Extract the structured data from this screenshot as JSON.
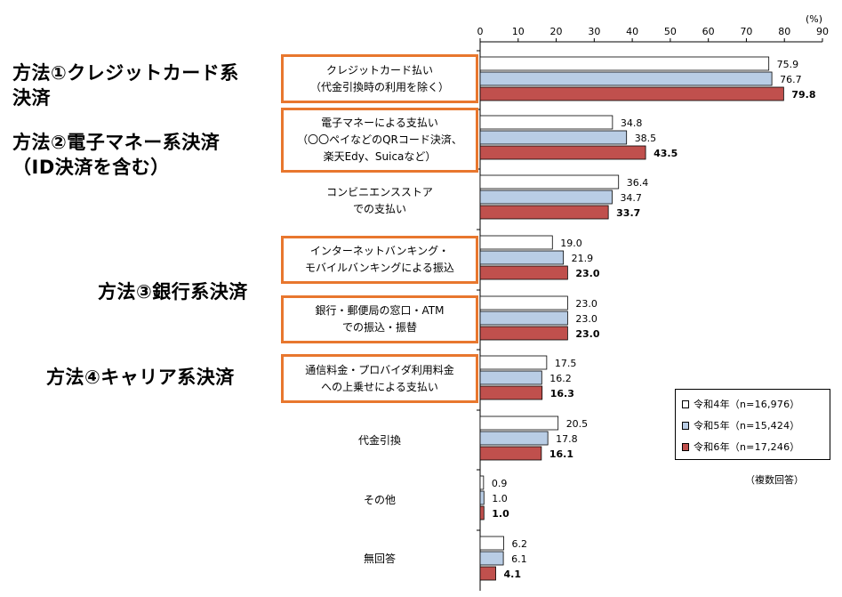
{
  "chart_data": {
    "type": "bar",
    "orientation": "horizontal",
    "unit": "(%)",
    "xlim": [
      0,
      90
    ],
    "ticks": [
      "0",
      "10",
      "20",
      "30",
      "40",
      "50",
      "60",
      "70",
      "80",
      "90"
    ],
    "note": "（複数回答）",
    "categories": [
      [
        "クレジットカード払い",
        "（代金引換時の利用を除く）"
      ],
      [
        "電子マネーによる支払い",
        "（〇〇ペイなどのQRコード決済、",
        "楽天Edy、Suicaなど）"
      ],
      [
        "コンビニエンスストア",
        "での支払い"
      ],
      [
        "インターネットバンキング・",
        "モバイルバンキングによる振込"
      ],
      [
        "銀行・郵便局の窓口・ATM",
        "での振込・振替"
      ],
      [
        "通信料金・プロバイダ利用料金",
        "への上乗せによる支払い"
      ],
      [
        "代金引換"
      ],
      [
        "その他"
      ],
      [
        "無回答"
      ]
    ],
    "series": [
      {
        "name": "令和4年（n=16,976）",
        "color": "#FFFFFF",
        "values": [
          75.9,
          34.8,
          36.4,
          19.0,
          23.0,
          17.5,
          20.5,
          0.9,
          6.2
        ],
        "labels": [
          "75.9",
          "34.8",
          "36.4",
          "19.0",
          "23.0",
          "17.5",
          "20.5",
          "0.9",
          "6.2"
        ]
      },
      {
        "name": "令和5年（n=15,424）",
        "color": "#B9CDE5",
        "values": [
          76.7,
          38.5,
          34.7,
          21.9,
          23.0,
          16.2,
          17.8,
          1.0,
          6.1
        ],
        "labels": [
          "76.7",
          "38.5",
          "34.7",
          "21.9",
          "23.0",
          "16.2",
          "17.8",
          "1.0",
          "6.1"
        ]
      },
      {
        "name": "令和6年（n=17,246）",
        "color": "#C0504D",
        "values": [
          79.8,
          43.5,
          33.7,
          23.0,
          23.0,
          16.3,
          16.1,
          1.0,
          4.1
        ],
        "labels": [
          "79.8",
          "43.5",
          "33.7",
          "23.0",
          "23.0",
          "16.3",
          "16.1",
          "1.0",
          "4.1"
        ]
      }
    ],
    "highlighted_categories": [
      0,
      1,
      3,
      4,
      5
    ],
    "highlight_color": "#E8772E"
  },
  "methods": [
    {
      "lines": [
        "方法①クレジットカード系",
        "決済"
      ]
    },
    {
      "lines": [
        "方法②電子マネー系決済",
        "（ID決済を含む）"
      ]
    },
    {
      "lines": [
        "方法③銀行系決済"
      ]
    },
    {
      "lines": [
        "方法④キャリア系決済"
      ]
    }
  ]
}
